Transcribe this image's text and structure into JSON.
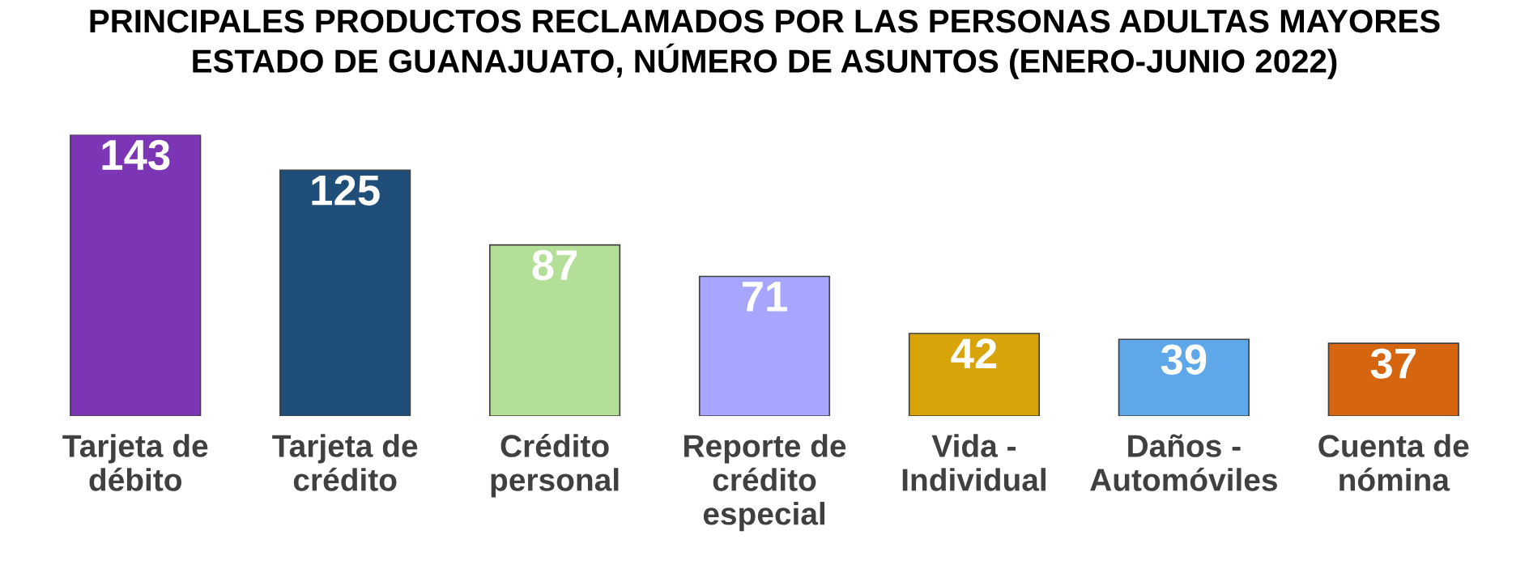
{
  "chart_data": {
    "type": "bar",
    "title": "PRINCIPALES PRODUCTOS RECLAMADOS POR LAS PERSONAS ADULTAS MAYORES\nESTADO DE GUANAJUATO, NÚMERO DE ASUNTOS (ENERO-JUNIO 2022)",
    "categories": [
      "Tarjeta de\ndébito",
      "Tarjeta de\ncrédito",
      "Crédito\npersonal",
      "Reporte de\ncrédito\nespecial",
      "Vida -\nIndividual",
      "Daños -\nAutomóviles",
      "Cuenta de\nnómina"
    ],
    "values": [
      143,
      125,
      87,
      71,
      42,
      39,
      37
    ],
    "colors": [
      "#7b35b5",
      "#1f4e79",
      "#b3df98",
      "#a6a6ff",
      "#d9a40a",
      "#5ea8ea",
      "#d5650f"
    ],
    "data_labels": true,
    "grid": false,
    "legend": false
  }
}
